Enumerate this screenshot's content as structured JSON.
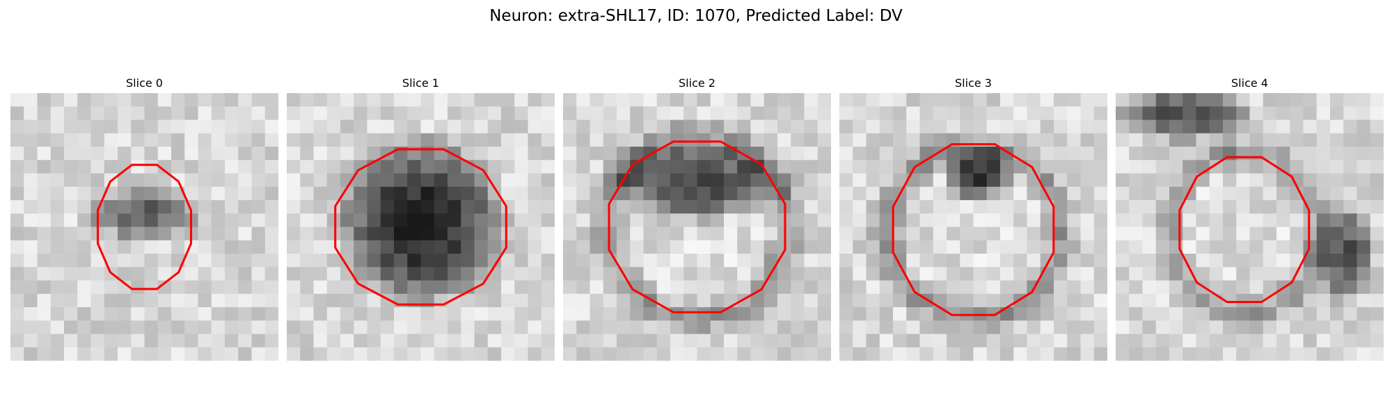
{
  "figure": {
    "title": "Neuron: extra-SHL17, ID: 1070, Predicted Label: DV"
  },
  "slices": [
    {
      "title": "Slice 0"
    },
    {
      "title": "Slice 1"
    },
    {
      "title": "Slice 2"
    },
    {
      "title": "Slice 3"
    },
    {
      "title": "Slice 4"
    }
  ],
  "colors": {
    "contour": "#ff0000",
    "colormap": "gray"
  }
}
